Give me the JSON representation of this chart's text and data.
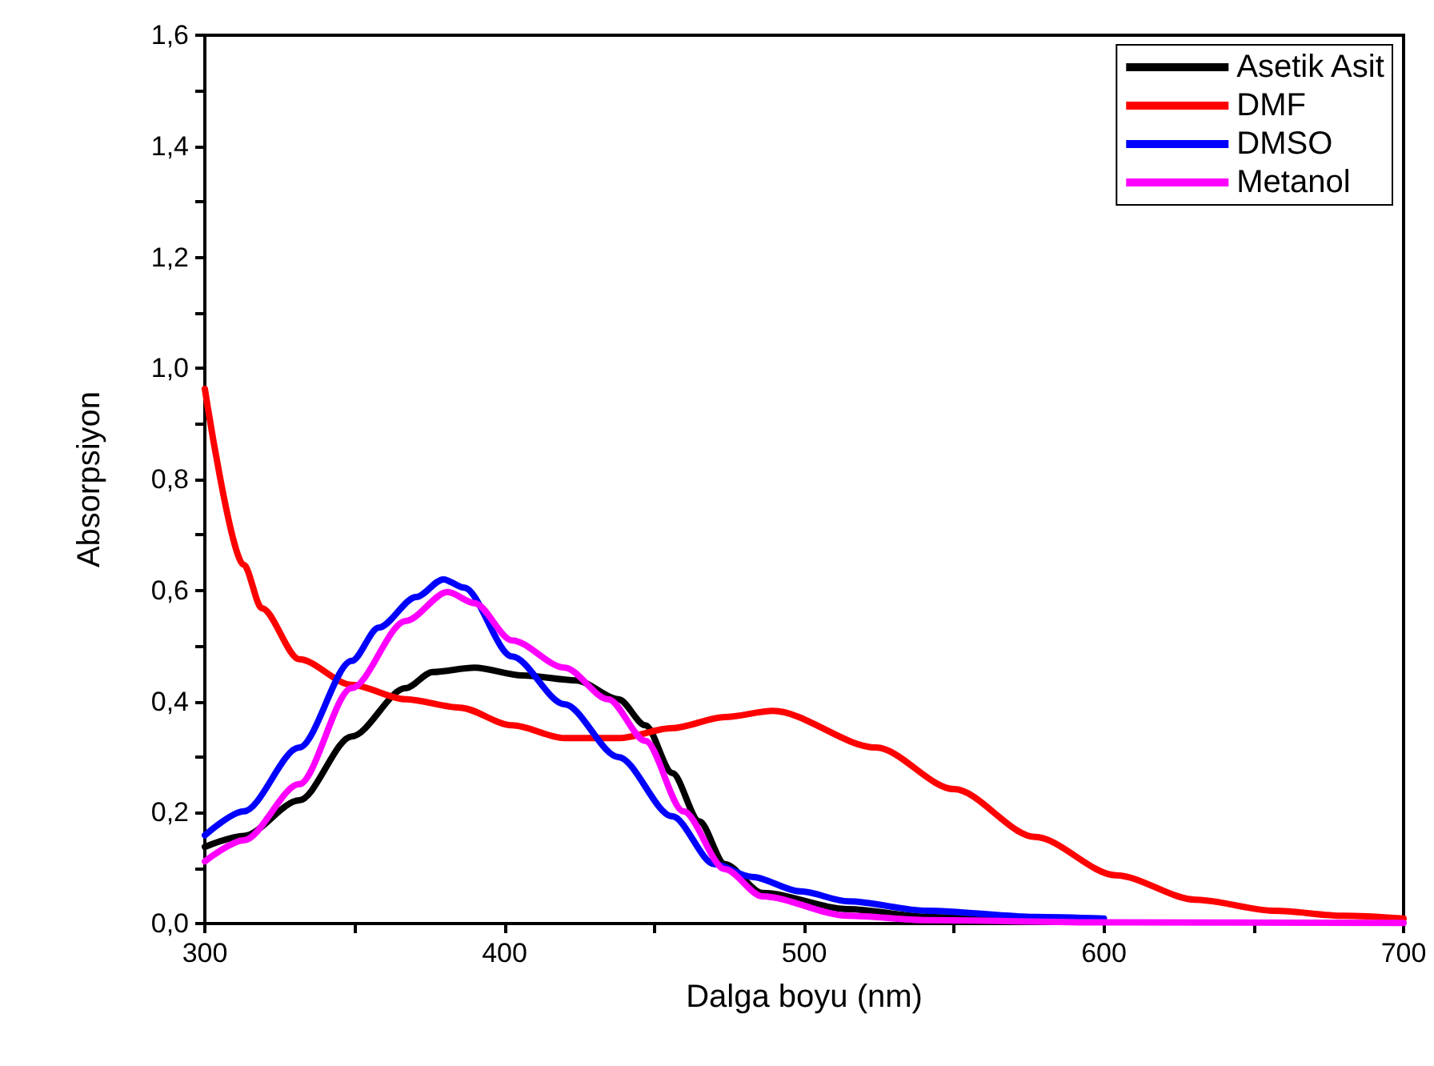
{
  "chart_data": {
    "type": "line",
    "xlabel": "Dalga boyu (nm)",
    "ylabel": "Absorpsiyon",
    "xlim": [
      300,
      700
    ],
    "ylim": [
      0,
      1.6
    ],
    "xticks": [
      300,
      {
        "value": 350,
        "label": null
      },
      400,
      {
        "value": 450,
        "label": null
      },
      500,
      {
        "value": 550,
        "label": null
      },
      600,
      {
        "value": 650,
        "label": null
      },
      700
    ],
    "yticks": [
      {
        "value": 0,
        "label": "0,0"
      },
      {
        "value": 0.1,
        "label": null
      },
      {
        "value": 0.2,
        "label": "0,2"
      },
      {
        "value": 0.3,
        "label": null
      },
      {
        "value": 0.4,
        "label": "0,4"
      },
      {
        "value": 0.5,
        "label": null
      },
      {
        "value": 0.6,
        "label": "0,6"
      },
      {
        "value": 0.7,
        "label": null
      },
      {
        "value": 0.8,
        "label": "0,8"
      },
      {
        "value": 0.9,
        "label": null
      },
      {
        "value": 1.0,
        "label": "1,0"
      },
      {
        "value": 1.1,
        "label": null
      },
      {
        "value": 1.2,
        "label": "1,2"
      },
      {
        "value": 1.3,
        "label": null
      },
      {
        "value": 1.4,
        "label": "1,4"
      },
      {
        "value": 1.5,
        "label": null
      },
      {
        "value": 1.6,
        "label": "1,6"
      }
    ],
    "grid": false,
    "legend": "top right",
    "marker": "none",
    "line_style": "solid",
    "series": [
      {
        "name": "Asetik Asit",
        "color": "#000000",
        "x": [
          300,
          313,
          331.5,
          349,
          367,
          376,
          390,
          406,
          424,
          438,
          447,
          456,
          465,
          473.5,
          486,
          514.7,
          541,
          570,
          600
        ],
        "values": [
          0.138,
          0.158,
          0.222,
          0.337,
          0.424,
          0.453,
          0.461,
          0.447,
          0.438,
          0.404,
          0.357,
          0.271,
          0.184,
          0.107,
          0.055,
          0.026,
          0.012,
          0.006,
          0.003
        ]
      },
      {
        "name": "DMF",
        "color": "#ff0000",
        "x": [
          300,
          313,
          319,
          331.5,
          349,
          367,
          385,
          402.5,
          420,
          438,
          456,
          473.5,
          489.6,
          524,
          550,
          577,
          604,
          630.6,
          657,
          680,
          700
        ],
        "values": [
          0.963,
          0.646,
          0.568,
          0.476,
          0.43,
          0.404,
          0.389,
          0.357,
          0.334,
          0.334,
          0.352,
          0.372,
          0.383,
          0.317,
          0.242,
          0.156,
          0.087,
          0.043,
          0.023,
          0.014,
          0.009
        ]
      },
      {
        "name": "DMSO",
        "color": "#0000ff",
        "x": [
          300,
          313,
          331.5,
          349,
          358,
          370.5,
          379.6,
          386.5,
          402.5,
          420,
          438,
          456,
          470,
          482.6,
          498.7,
          514.7,
          541,
          577,
          600
        ],
        "values": [
          0.159,
          0.202,
          0.317,
          0.473,
          0.533,
          0.588,
          0.62,
          0.605,
          0.481,
          0.395,
          0.3,
          0.193,
          0.107,
          0.084,
          0.058,
          0.04,
          0.023,
          0.012,
          0.009
        ]
      },
      {
        "name": "Metanol",
        "color": "#ff00ff",
        "x": [
          300,
          313,
          331.5,
          349,
          367,
          381,
          390,
          402.5,
          420,
          434.6,
          447,
          459.7,
          473.5,
          486,
          514.7,
          541,
          600,
          700
        ],
        "values": [
          0.112,
          0.15,
          0.251,
          0.424,
          0.545,
          0.597,
          0.577,
          0.51,
          0.461,
          0.404,
          0.329,
          0.202,
          0.098,
          0.049,
          0.014,
          0.006,
          0.002,
          0.001
        ]
      }
    ]
  }
}
